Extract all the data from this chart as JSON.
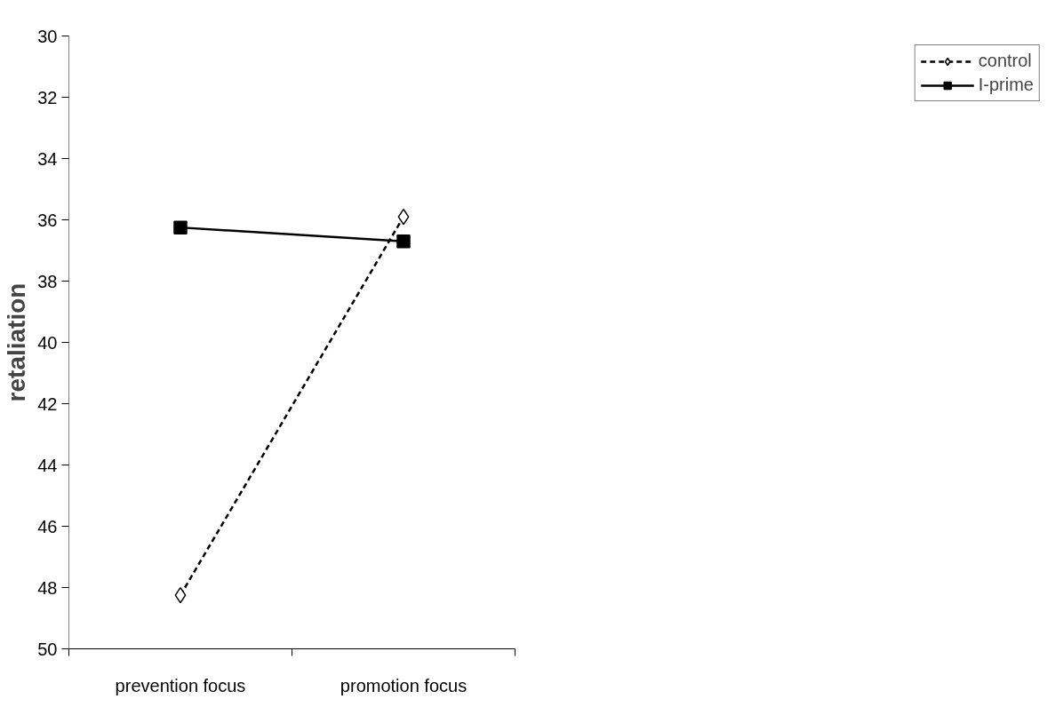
{
  "chart_data": {
    "type": "line",
    "ylabel": "retaliation",
    "categories": [
      "prevention focus",
      "promotion focus"
    ],
    "ylim": [
      50,
      30
    ],
    "yticks": [
      30,
      32,
      34,
      36,
      38,
      40,
      42,
      44,
      46,
      48,
      50
    ],
    "grid": false,
    "legend": "right",
    "series": [
      {
        "name": "control",
        "color": "#000000",
        "values": [
          48.25,
          35.9
        ],
        "marker": "diamond",
        "line_style": "dashed"
      },
      {
        "name": "I-prime",
        "color": "#000000",
        "values": [
          36.25,
          36.7
        ],
        "marker": "square",
        "line_style": "solid"
      }
    ]
  }
}
